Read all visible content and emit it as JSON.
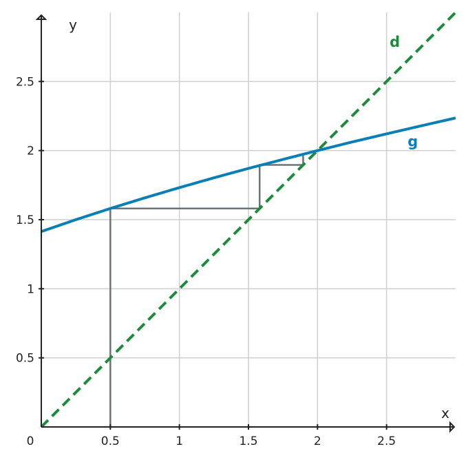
{
  "chart_data": {
    "type": "line",
    "title": "",
    "xlabel": "x",
    "ylabel": "y",
    "origin_label": "0",
    "xlim": [
      0,
      3
    ],
    "ylim": [
      0,
      3
    ],
    "x_ticks": [
      {
        "value": 0.5,
        "label": "0.5"
      },
      {
        "value": 1,
        "label": "1"
      },
      {
        "value": 1.5,
        "label": "1.5"
      },
      {
        "value": 2,
        "label": "2"
      },
      {
        "value": 2.5,
        "label": "2.5"
      }
    ],
    "y_ticks": [
      {
        "value": 0.5,
        "label": "0.5"
      },
      {
        "value": 1,
        "label": "1"
      },
      {
        "value": 1.5,
        "label": "1.5"
      },
      {
        "value": 2,
        "label": "2"
      },
      {
        "value": 2.5,
        "label": "2.5"
      }
    ],
    "grid": true,
    "series": [
      {
        "name": "g",
        "style": "solid",
        "color": "#0a7fb5",
        "x": [
          0,
          0.25,
          0.5,
          0.75,
          1,
          1.25,
          1.5,
          1.75,
          2,
          2.25,
          2.5,
          2.75,
          3
        ],
        "y": [
          1.414,
          1.5,
          1.581,
          1.658,
          1.732,
          1.803,
          1.871,
          1.936,
          2.0,
          2.062,
          2.121,
          2.179,
          2.236
        ]
      },
      {
        "name": "d",
        "style": "dashed",
        "color": "#1e8a3c",
        "x": [
          0,
          3
        ],
        "y": [
          0,
          3
        ]
      }
    ],
    "cobweb": {
      "color": "#6b7378",
      "points": [
        [
          0.5,
          0
        ],
        [
          0.5,
          1.581
        ],
        [
          1.581,
          1.581
        ],
        [
          1.581,
          1.896
        ],
        [
          1.896,
          1.896
        ],
        [
          1.896,
          1.974
        ]
      ]
    },
    "series_labels": [
      {
        "text": "d",
        "x": 2.56,
        "y": 2.75,
        "color": "#1e8a3c"
      },
      {
        "text": "g",
        "x": 2.69,
        "y": 2.03,
        "color": "#0a7fb5"
      }
    ]
  }
}
